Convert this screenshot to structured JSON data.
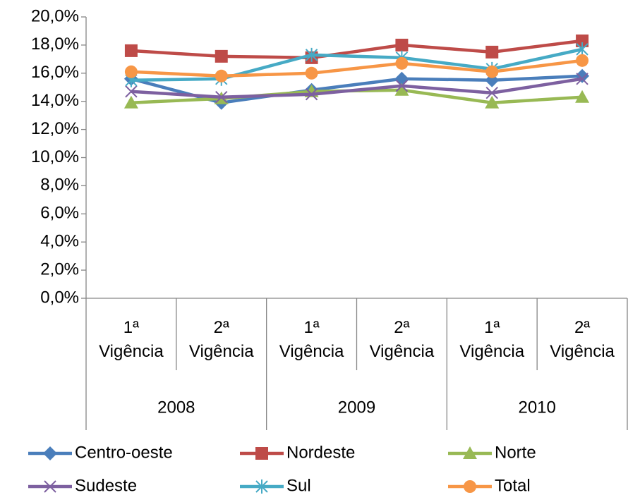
{
  "chart_data": {
    "type": "line",
    "categories": [
      "1ª Vigência",
      "2ª Vigência",
      "1ª Vigência",
      "2ª Vigência",
      "1ª Vigência",
      "2ª Vigência"
    ],
    "x_groups": [
      "2008",
      "2009",
      "2010"
    ],
    "ylim": [
      0,
      20
    ],
    "yticks": [
      {
        "value": 0,
        "label": "0,0%"
      },
      {
        "value": 2,
        "label": "2,0%"
      },
      {
        "value": 4,
        "label": "4,0%"
      },
      {
        "value": 6,
        "label": "6,0%"
      },
      {
        "value": 8,
        "label": "8,0%"
      },
      {
        "value": 10,
        "label": "10,0%"
      },
      {
        "value": 12,
        "label": "12,0%"
      },
      {
        "value": 14,
        "label": "14,0%"
      },
      {
        "value": 16,
        "label": "16,0%"
      },
      {
        "value": 18,
        "label": "18,0%"
      },
      {
        "value": 20,
        "label": "20,0%"
      }
    ],
    "legend": "bottom",
    "series": [
      {
        "name": "Centro-oeste",
        "color": "#4a7ebb",
        "marker": "diamond",
        "values": [
          15.6,
          13.9,
          14.8,
          15.6,
          15.5,
          15.8
        ]
      },
      {
        "name": "Nordeste",
        "color": "#be4b48",
        "marker": "square",
        "values": [
          17.6,
          17.2,
          17.1,
          18.0,
          17.5,
          18.3
        ]
      },
      {
        "name": "Norte",
        "color": "#98b954",
        "marker": "triangle",
        "values": [
          13.9,
          14.2,
          14.7,
          14.8,
          13.9,
          14.3
        ]
      },
      {
        "name": "Sudeste",
        "color": "#7d60a0",
        "marker": "x",
        "values": [
          14.7,
          14.3,
          14.5,
          15.1,
          14.6,
          15.6
        ]
      },
      {
        "name": "Sul",
        "color": "#46aac5",
        "marker": "star",
        "values": [
          15.5,
          15.6,
          17.3,
          17.1,
          16.3,
          17.7
        ]
      },
      {
        "name": "Total",
        "color": "#f79646",
        "marker": "circle",
        "values": [
          16.1,
          15.8,
          16.0,
          16.7,
          16.1,
          16.9
        ]
      }
    ]
  }
}
